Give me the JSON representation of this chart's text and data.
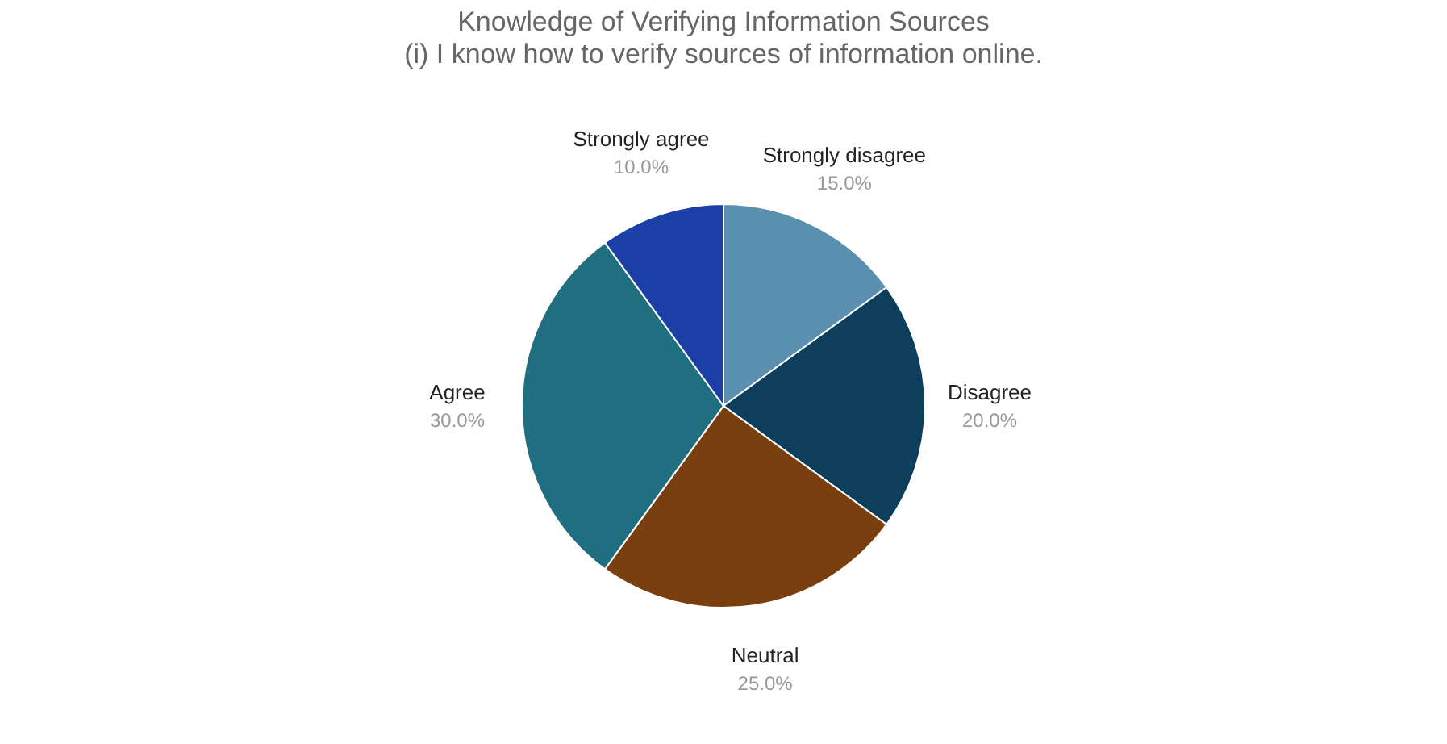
{
  "chart_data": {
    "type": "pie",
    "title": "Knowledge of Verifying Information Sources",
    "subtitle": "(i) I know how to verify sources of information online.",
    "categories": [
      "Strongly disagree",
      "Disagree",
      "Neutral",
      "Agree",
      "Strongly agree"
    ],
    "values": [
      15,
      20,
      25,
      30,
      10
    ],
    "colors": [
      "#5a8fb0",
      "#0d3f5c",
      "#7a3f0e",
      "#1f6f80",
      "#1a40a8"
    ],
    "value_labels": [
      "15.0%",
      "20.0%",
      "25.0%",
      "30.0%",
      "10.0%"
    ],
    "legend": false
  }
}
